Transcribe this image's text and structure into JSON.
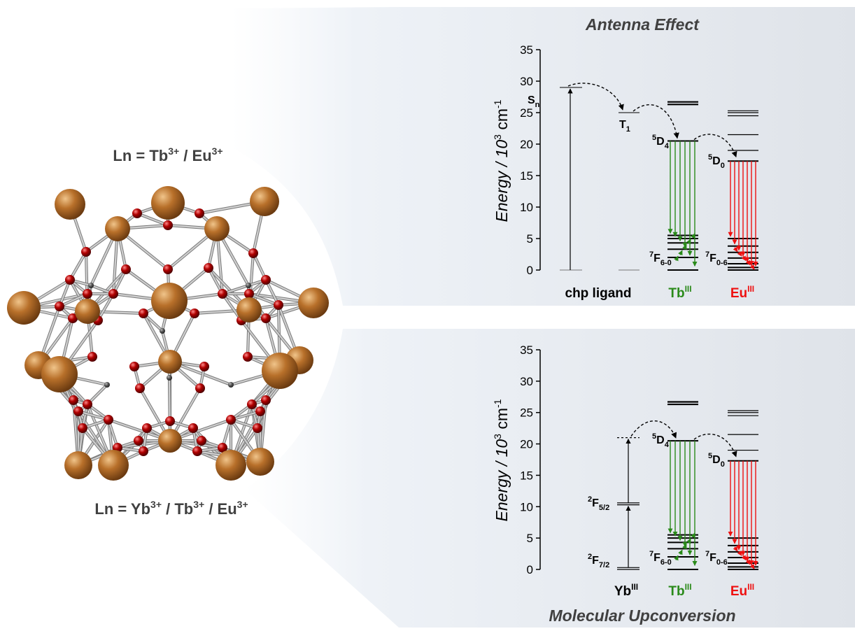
{
  "structure": {
    "label_top": {
      "prefix": "Ln = Tb",
      "sup1": "3+",
      "sep": " / Eu",
      "sup2": "3+"
    },
    "label_bottom": {
      "prefix": "Ln = Yb",
      "sup1": "3+",
      "sep1": " / Tb",
      "sup2": "3+",
      "sep2": " / Eu",
      "sup3": "3+"
    },
    "colors": {
      "metal": "#b8702a",
      "oxygen": "#b00000",
      "carbon": "#555555",
      "bond": "#a8a8a8"
    }
  },
  "panels": [
    {
      "title": "Antenna Effect",
      "axis": {
        "label_main": "Energy / 10",
        "label_sup": "3",
        "label_unit": " cm",
        "label_unit_sup": "-1",
        "ticks": [
          "35",
          "30",
          "25",
          "20",
          "15",
          "10",
          "5",
          "0"
        ]
      },
      "columns": [
        {
          "base": "chp ligand",
          "sup": "",
          "color": "#000000"
        },
        {
          "base": "Tb",
          "sup": "III",
          "color": "#2a8a1a"
        },
        {
          "base": "Eu",
          "sup": "III",
          "color": "#ee1010"
        }
      ],
      "levels": {
        "Sn": {
          "base": "S",
          "sub": "n"
        },
        "T1": {
          "base": "T",
          "sub": "1"
        },
        "Tb_emit": {
          "pre": "5",
          "base": "D",
          "sub": "4"
        },
        "Tb_ground": {
          "pre": "7",
          "base": "F",
          "sub": "6-0"
        },
        "Eu_emit": {
          "pre": "5",
          "base": "D",
          "sub": "0"
        },
        "Eu_ground": {
          "pre": "7",
          "base": "F",
          "sub": "0-6"
        }
      }
    },
    {
      "title": "Molecular Upconversion",
      "axis": {
        "label_main": "Energy / 10",
        "label_sup": "3",
        "label_unit": " cm",
        "label_unit_sup": "-1",
        "ticks": [
          "35",
          "30",
          "25",
          "20",
          "15",
          "10",
          "5",
          "0"
        ]
      },
      "columns": [
        {
          "base": "Yb",
          "sup": "III",
          "color": "#000000"
        },
        {
          "base": "Tb",
          "sup": "III",
          "color": "#2a8a1a"
        },
        {
          "base": "Eu",
          "sup": "III",
          "color": "#ee1010"
        }
      ],
      "levels": {
        "Yb_excited": {
          "pre": "2",
          "base": "F",
          "sub": "5/2"
        },
        "Yb_ground": {
          "pre": "2",
          "base": "F",
          "sub": "7/2"
        },
        "Tb_emit": {
          "pre": "5",
          "base": "D",
          "sub": "4"
        },
        "Tb_ground": {
          "pre": "7",
          "base": "F",
          "sub": "6-0"
        },
        "Eu_emit": {
          "pre": "5",
          "base": "D",
          "sub": "0"
        },
        "Eu_ground": {
          "pre": "7",
          "base": "F",
          "sub": "0-6"
        }
      }
    }
  ],
  "energy_levels": {
    "unit_scale": "10^3 cm^-1",
    "range": [
      0,
      35
    ],
    "chp_singlet": 29,
    "chp_triplet": 25,
    "yb_excited": 10.3,
    "yb_virtual": 21,
    "tb_5D4": 20.5,
    "tb_upper": [
      26.3,
      26.7
    ],
    "tb_7F": [
      0,
      2.0,
      3.3,
      4.3,
      5.0,
      5.5
    ],
    "eu_5D0": 17.3,
    "eu_upper": [
      19.0,
      21.5,
      24.5,
      25.0,
      25.3
    ],
    "eu_7F": [
      0,
      0.4,
      1.0,
      1.9,
      2.8,
      3.8,
      5.0
    ]
  }
}
